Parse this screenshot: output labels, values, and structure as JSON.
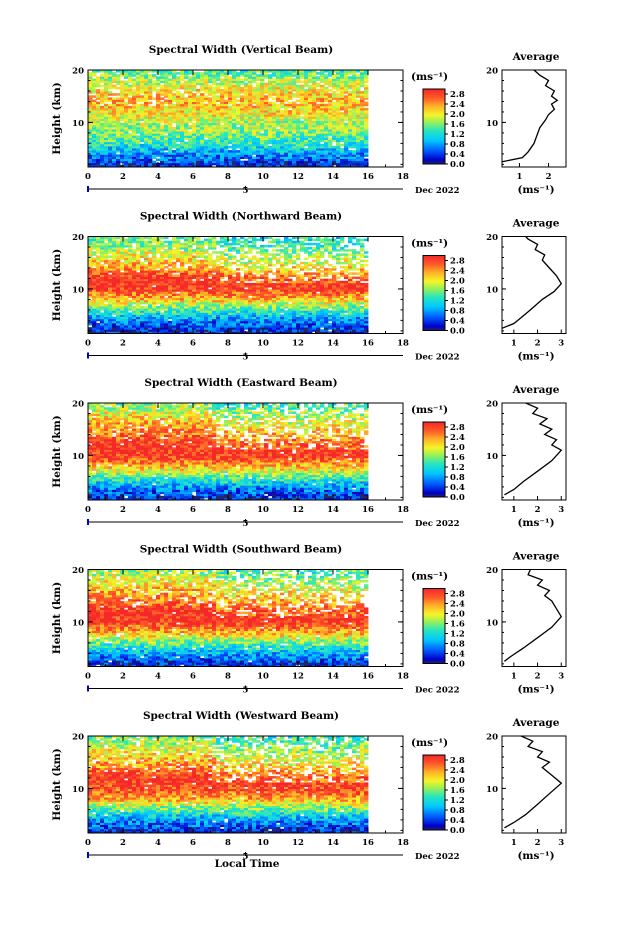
{
  "figure": {
    "x_axis_label": "Local Time",
    "height_label": "Height (km)",
    "colorbar_unit": "(ms⁻¹)",
    "profile_unit": "(ms⁻¹)",
    "date_label": "Dec 2022",
    "day_marker": "5"
  },
  "chart_data": [
    {
      "type": "heatmap",
      "title": "Spectral Width (Vertical Beam)",
      "xlabel": "",
      "ylabel": "Height (km)",
      "x_ticks": [
        0,
        2,
        4,
        6,
        8,
        10,
        12,
        14,
        16,
        18
      ],
      "xlim": [
        0,
        18
      ],
      "ylim": [
        1.5,
        20
      ],
      "data_x_range": [
        0,
        16
      ],
      "y_ticks": [
        10,
        20
      ],
      "colorbar": {
        "unit": "(ms⁻¹)",
        "range": [
          0,
          3.0
        ],
        "ticks": [
          "2.8",
          "2.4",
          "2.0",
          "1.6",
          "1.2",
          "0.8",
          "0.4",
          "0.0"
        ]
      },
      "height_profile": [
        [
          2,
          0.3
        ],
        [
          4,
          0.8
        ],
        [
          6,
          1.3
        ],
        [
          8,
          1.6
        ],
        [
          10,
          1.8
        ],
        [
          12,
          2.1
        ],
        [
          14,
          2.3
        ],
        [
          16,
          2.1
        ],
        [
          18,
          1.8
        ],
        [
          20,
          1.4
        ]
      ],
      "average_profile": {
        "title": "Average",
        "xlabel": "(ms⁻¹)",
        "x_ticks": [
          "1",
          "2"
        ],
        "xlim": [
          0.4,
          2.6
        ],
        "points": [
          [
            0.4,
            2.5
          ],
          [
            1.1,
            3.3
          ],
          [
            1.3,
            4.4
          ],
          [
            1.5,
            6.0
          ],
          [
            1.6,
            7.5
          ],
          [
            1.7,
            9.0
          ],
          [
            1.9,
            10.5
          ],
          [
            2.0,
            11.5
          ],
          [
            2.2,
            12.5
          ],
          [
            2.1,
            13.5
          ],
          [
            2.3,
            14.2
          ],
          [
            2.1,
            15.0
          ],
          [
            2.2,
            16.0
          ],
          [
            1.9,
            17.0
          ],
          [
            2.0,
            18.0
          ],
          [
            1.7,
            19.0
          ],
          [
            1.5,
            20.0
          ]
        ]
      }
    },
    {
      "type": "heatmap",
      "title": "Spectral Width (Northward Beam)",
      "xlabel": "",
      "ylabel": "Height (km)",
      "x_ticks": [
        0,
        2,
        4,
        6,
        8,
        10,
        12,
        14,
        16,
        18
      ],
      "xlim": [
        0,
        18
      ],
      "ylim": [
        1.5,
        20
      ],
      "data_x_range": [
        0,
        16
      ],
      "y_ticks": [
        10,
        20
      ],
      "colorbar": {
        "unit": "(ms⁻¹)",
        "range": [
          0,
          3.0
        ],
        "ticks": [
          "2.8",
          "2.4",
          "2.0",
          "1.6",
          "1.2",
          "0.8",
          "0.4",
          "0.0"
        ]
      },
      "height_profile": [
        [
          2,
          0.3
        ],
        [
          4,
          0.7
        ],
        [
          6,
          1.4
        ],
        [
          8,
          2.2
        ],
        [
          10,
          2.9
        ],
        [
          12,
          3.0
        ],
        [
          14,
          2.4
        ],
        [
          16,
          2.1
        ],
        [
          18,
          1.7
        ],
        [
          20,
          1.5
        ]
      ],
      "average_profile": {
        "title": "Average",
        "xlabel": "(ms⁻¹)",
        "x_ticks": [
          "1",
          "2",
          "3"
        ],
        "xlim": [
          0.5,
          3.2
        ],
        "points": [
          [
            0.5,
            2.5
          ],
          [
            1.0,
            3.4
          ],
          [
            1.3,
            4.5
          ],
          [
            1.7,
            6.0
          ],
          [
            2.2,
            8.0
          ],
          [
            2.7,
            9.5
          ],
          [
            3.0,
            11.0
          ],
          [
            2.8,
            12.5
          ],
          [
            2.5,
            14.0
          ],
          [
            2.2,
            15.5
          ],
          [
            2.3,
            16.5
          ],
          [
            1.9,
            17.5
          ],
          [
            2.0,
            18.5
          ],
          [
            1.6,
            19.5
          ],
          [
            1.5,
            20.0
          ]
        ]
      }
    },
    {
      "type": "heatmap",
      "title": "Spectral Width (Eastward Beam)",
      "xlabel": "",
      "ylabel": "Height (km)",
      "x_ticks": [
        0,
        2,
        4,
        6,
        8,
        10,
        12,
        14,
        16,
        18
      ],
      "xlim": [
        0,
        18
      ],
      "ylim": [
        1.5,
        20
      ],
      "data_x_range": [
        0,
        16
      ],
      "y_ticks": [
        10,
        20
      ],
      "colorbar": {
        "unit": "(ms⁻¹)",
        "range": [
          0,
          3.0
        ],
        "ticks": [
          "2.8",
          "2.4",
          "2.0",
          "1.6",
          "1.2",
          "0.8",
          "0.4",
          "0.0"
        ]
      },
      "height_profile": [
        [
          2,
          0.3
        ],
        [
          4,
          0.8
        ],
        [
          6,
          1.5
        ],
        [
          8,
          2.3
        ],
        [
          10,
          2.9
        ],
        [
          12,
          3.0
        ],
        [
          14,
          2.6
        ],
        [
          16,
          2.3
        ],
        [
          18,
          2.0
        ],
        [
          20,
          1.6
        ]
      ],
      "average_profile": {
        "title": "Average",
        "xlabel": "(ms⁻¹)",
        "x_ticks": [
          "1",
          "2",
          "3"
        ],
        "xlim": [
          0.5,
          3.2
        ],
        "points": [
          [
            0.6,
            2.5
          ],
          [
            1.0,
            3.5
          ],
          [
            1.4,
            5.0
          ],
          [
            2.0,
            7.0
          ],
          [
            2.6,
            9.0
          ],
          [
            3.0,
            11.0
          ],
          [
            2.6,
            12.0
          ],
          [
            2.8,
            13.0
          ],
          [
            2.3,
            14.0
          ],
          [
            2.6,
            15.0
          ],
          [
            2.1,
            16.0
          ],
          [
            2.4,
            17.0
          ],
          [
            1.8,
            18.0
          ],
          [
            2.0,
            19.0
          ],
          [
            1.5,
            20.0
          ]
        ]
      }
    },
    {
      "type": "heatmap",
      "title": "Spectral Width (Southward Beam)",
      "xlabel": "",
      "ylabel": "Height (km)",
      "x_ticks": [
        0,
        2,
        4,
        6,
        8,
        10,
        12,
        14,
        16,
        18
      ],
      "xlim": [
        0,
        18
      ],
      "ylim": [
        1.5,
        20
      ],
      "data_x_range": [
        0,
        16
      ],
      "y_ticks": [
        10,
        20
      ],
      "colorbar": {
        "unit": "(ms⁻¹)",
        "range": [
          0,
          3.0
        ],
        "ticks": [
          "2.8",
          "2.4",
          "2.0",
          "1.6",
          "1.2",
          "0.8",
          "0.4",
          "0.0"
        ]
      },
      "height_profile": [
        [
          2,
          0.3
        ],
        [
          4,
          0.9
        ],
        [
          6,
          1.5
        ],
        [
          8,
          2.3
        ],
        [
          10,
          2.9
        ],
        [
          12,
          3.0
        ],
        [
          14,
          2.6
        ],
        [
          16,
          2.3
        ],
        [
          18,
          2.0
        ],
        [
          20,
          1.7
        ]
      ],
      "average_profile": {
        "title": "Average",
        "xlabel": "(ms⁻¹)",
        "x_ticks": [
          "1",
          "2",
          "3"
        ],
        "xlim": [
          0.5,
          3.2
        ],
        "points": [
          [
            0.6,
            2.5
          ],
          [
            0.9,
            3.5
          ],
          [
            1.4,
            5.0
          ],
          [
            2.0,
            7.0
          ],
          [
            2.6,
            9.0
          ],
          [
            3.0,
            11.0
          ],
          [
            2.8,
            12.5
          ],
          [
            2.6,
            14.0
          ],
          [
            2.3,
            15.0
          ],
          [
            2.5,
            16.0
          ],
          [
            2.0,
            17.0
          ],
          [
            2.2,
            18.0
          ],
          [
            1.6,
            19.0
          ],
          [
            1.7,
            20.0
          ]
        ]
      }
    },
    {
      "type": "heatmap",
      "title": "Spectral Width (Westward Beam)",
      "xlabel": "Local Time",
      "ylabel": "Height (km)",
      "x_ticks": [
        0,
        2,
        4,
        6,
        8,
        10,
        12,
        14,
        16,
        18
      ],
      "xlim": [
        0,
        18
      ],
      "ylim": [
        1.5,
        20
      ],
      "data_x_range": [
        0,
        16
      ],
      "y_ticks": [
        10,
        20
      ],
      "colorbar": {
        "unit": "(ms⁻¹)",
        "range": [
          0,
          3.0
        ],
        "ticks": [
          "2.8",
          "2.4",
          "2.0",
          "1.6",
          "1.2",
          "0.8",
          "0.4",
          "0.0"
        ]
      },
      "height_profile": [
        [
          2,
          0.3
        ],
        [
          4,
          0.8
        ],
        [
          6,
          1.5
        ],
        [
          8,
          2.3
        ],
        [
          10,
          2.8
        ],
        [
          12,
          3.0
        ],
        [
          14,
          2.5
        ],
        [
          16,
          2.2
        ],
        [
          18,
          1.9
        ],
        [
          20,
          1.6
        ]
      ],
      "average_profile": {
        "title": "Average",
        "xlabel": "(ms⁻¹)",
        "x_ticks": [
          "1",
          "2",
          "3"
        ],
        "xlim": [
          0.5,
          3.2
        ],
        "points": [
          [
            0.6,
            2.5
          ],
          [
            1.0,
            3.5
          ],
          [
            1.5,
            5.0
          ],
          [
            2.0,
            7.0
          ],
          [
            2.5,
            9.0
          ],
          [
            3.0,
            11.0
          ],
          [
            2.6,
            12.5
          ],
          [
            2.2,
            14.0
          ],
          [
            2.5,
            15.0
          ],
          [
            2.0,
            16.0
          ],
          [
            2.2,
            17.0
          ],
          [
            1.6,
            18.0
          ],
          [
            1.8,
            19.0
          ],
          [
            1.3,
            20.0
          ]
        ]
      }
    }
  ]
}
